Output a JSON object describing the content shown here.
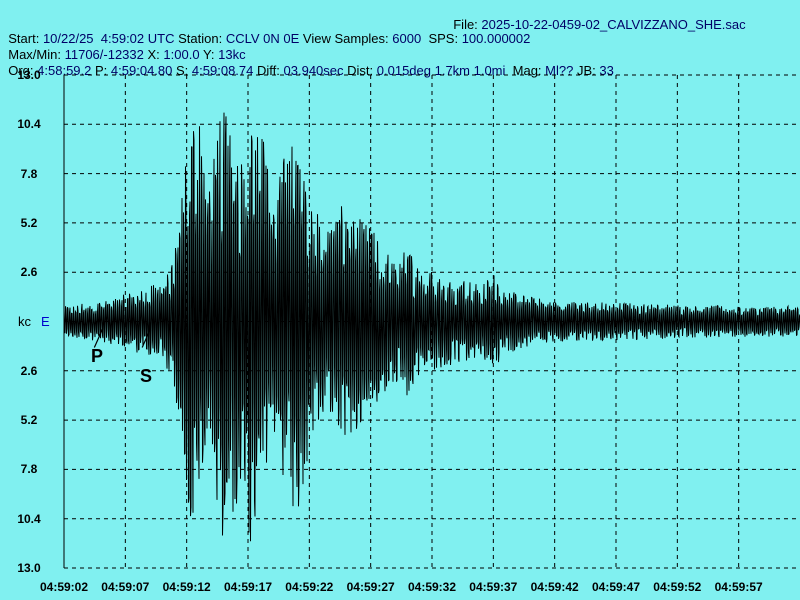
{
  "header": {
    "file_label": "File:",
    "file_name": "2025-10-22-0459-02_CALVIZZANO_SHE.sac",
    "start_label": "Start:",
    "start_value": "10/22/25  4:59:02 UTC",
    "station_label": "Station:",
    "station_value": "CCLV 0N 0E",
    "view_samples_label": "View Samples:",
    "view_samples_value": "6000",
    "sps_label": "SPS:",
    "sps_value": "100.000002",
    "maxmin_label": "Max/Min:",
    "maxmin_value": "11706/-12332",
    "x_label": "X:",
    "x_value": "1:00.0",
    "y_label": "Y:",
    "y_value": "13kc",
    "org_label": "Org:",
    "org_value": "4:58:59.2",
    "p_label": "P:",
    "p_value": "4:59:04.80",
    "s_label": "S:",
    "s_value": "4:59:08.74",
    "diff_label": "Diff:",
    "diff_value": "03.940sec",
    "dist_label": "Dist:",
    "dist_value": "0.015deg 1.7km 1.0mi",
    "mag_label": "Mag:",
    "mag_value": "Ml??",
    "jb_label": "JB:",
    "jb_value": "33"
  },
  "channel": {
    "unit": "kc",
    "component": "E"
  },
  "picks": {
    "p": "P",
    "s": "S"
  },
  "colors": {
    "background": "#80f0f0",
    "trace": "#000000",
    "grid": "#000000",
    "header_text": "#000066"
  },
  "chart_data": {
    "type": "line",
    "grid": true,
    "y_tick_labels": [
      "13.0",
      "10.4",
      "7.8",
      "5.2",
      "2.6",
      "kc",
      "2.6",
      "5.2",
      "7.8",
      "10.4",
      "13.0"
    ],
    "x_tick_labels": [
      "04:59:02",
      "04:59:07",
      "04:59:12",
      "04:59:17",
      "04:59:22",
      "04:59:27",
      "04:59:32",
      "04:59:37",
      "04:59:42",
      "04:59:47",
      "04:59:52",
      "04:59:57"
    ],
    "ylim": [
      -13,
      13
    ],
    "xlim_seconds": [
      0,
      60
    ],
    "envelope_seconds": [
      0,
      2,
      4,
      5.5,
      6.8,
      8,
      8.8,
      9.3,
      9.8,
      10.3,
      11,
      12,
      12.5,
      13.5,
      14.5,
      15,
      16,
      17,
      18,
      19,
      20,
      21,
      22,
      23,
      24,
      25,
      26,
      27,
      28,
      29,
      30,
      32,
      34,
      35,
      36,
      38,
      40,
      45,
      50,
      55,
      60
    ],
    "envelope_kc": [
      0.8,
      1.0,
      1.2,
      1.6,
      1.8,
      2.2,
      3.0,
      5.0,
      8.0,
      11.5,
      11.0,
      6.0,
      12.0,
      10.5,
      9.0,
      12.5,
      11.0,
      6.0,
      9.0,
      10.5,
      7.0,
      5.0,
      5.5,
      6.5,
      5.5,
      5.0,
      4.0,
      3.2,
      4.0,
      3.0,
      2.7,
      2.4,
      1.9,
      2.6,
      1.7,
      1.3,
      1.1,
      1.0,
      0.9,
      0.8,
      0.8
    ],
    "p_pick_seconds": 2.8,
    "s_pick_seconds": 6.7
  }
}
